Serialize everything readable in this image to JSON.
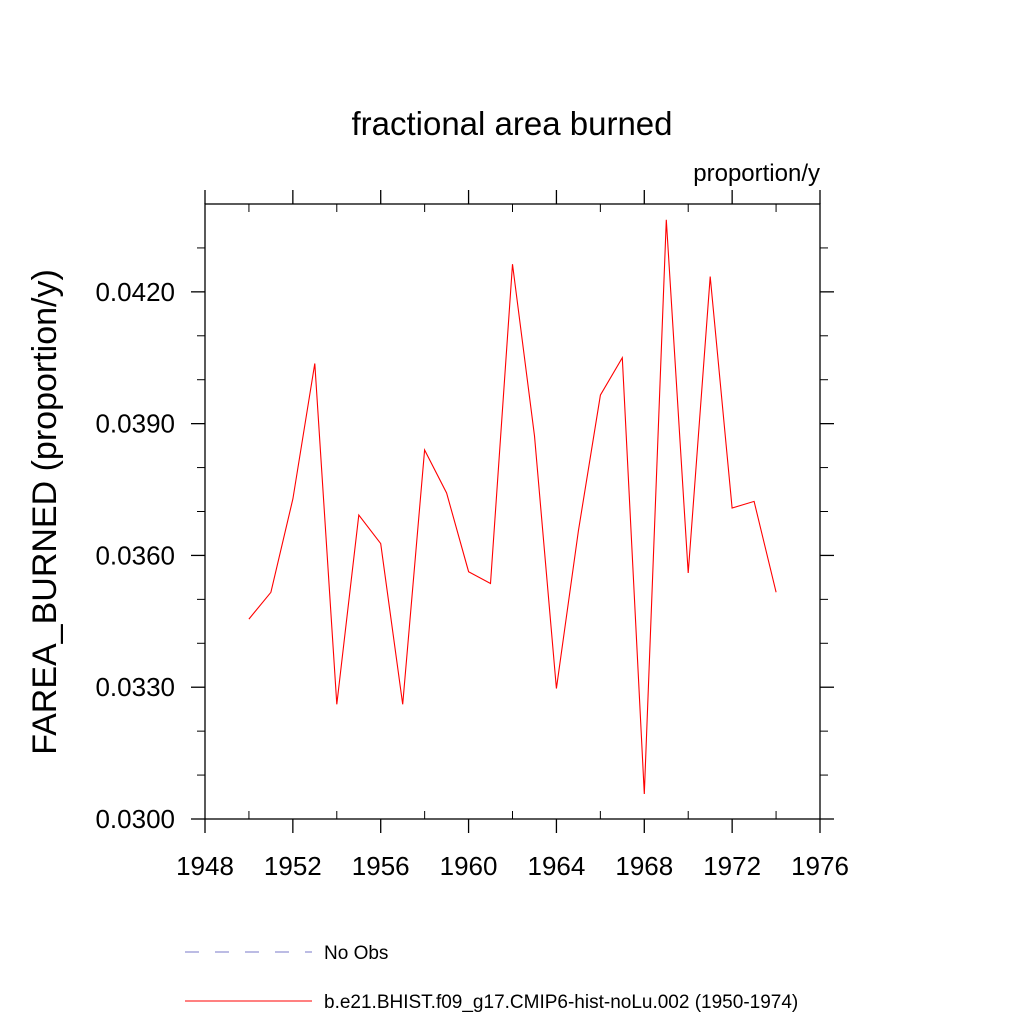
{
  "chart_data": {
    "type": "line",
    "title": "fractional area burned",
    "units_label": "proportion/y",
    "ylabel": "FAREA_BURNED  (proportion/y)",
    "xlabel": "",
    "xlim": [
      1948,
      1976
    ],
    "ylim": [
      0.03,
      0.044
    ],
    "x_major_ticks": [
      1948,
      1952,
      1956,
      1960,
      1964,
      1968,
      1972,
      1976
    ],
    "x_minor_ticks": [
      1950,
      1954,
      1958,
      1962,
      1966,
      1970,
      1974
    ],
    "y_major_ticks": [
      0.03,
      0.033,
      0.036,
      0.039,
      0.042
    ],
    "y_tick_labels": [
      "0.0300",
      "0.0330",
      "0.0360",
      "0.0390",
      "0.0420"
    ],
    "y_minor_step": 0.001,
    "series": [
      {
        "name": "b.e21.BHIST.f09_g17.CMIP6-hist-noLu.002 (1950-1974)",
        "color": "#ff0000",
        "x": [
          1950,
          1951,
          1952,
          1953,
          1954,
          1955,
          1956,
          1957,
          1958,
          1959,
          1960,
          1961,
          1962,
          1963,
          1964,
          1965,
          1966,
          1967,
          1968,
          1969,
          1970,
          1971,
          1972,
          1973,
          1974
        ],
        "values": [
          0.03455,
          0.03516,
          0.03729,
          0.04037,
          0.03261,
          0.03692,
          0.03627,
          0.03261,
          0.0384,
          0.03742,
          0.03563,
          0.03536,
          0.04263,
          0.03872,
          0.03297,
          0.03656,
          0.03965,
          0.0405,
          0.03057,
          0.04364,
          0.0356,
          0.04235,
          0.03708,
          0.03723,
          0.03516
        ]
      }
    ],
    "legend": [
      {
        "label": "No Obs",
        "style": "dashed",
        "color": "#7a78c8"
      },
      {
        "label": "b.e21.BHIST.f09_g17.CMIP6-hist-noLu.002 (1950-1974)",
        "style": "solid",
        "color": "#ff0000"
      }
    ],
    "legend_position": "bottom"
  }
}
